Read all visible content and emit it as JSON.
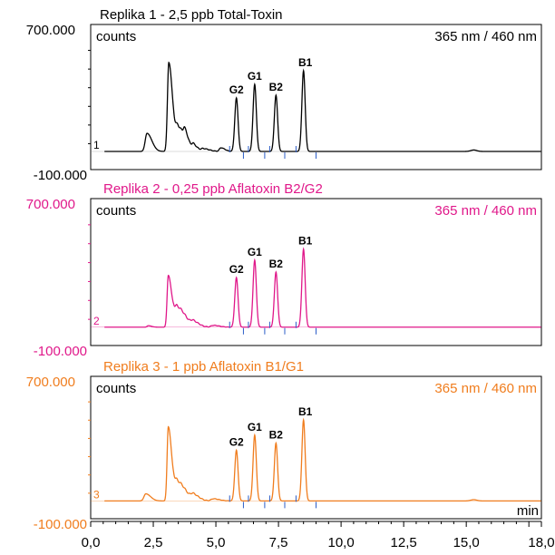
{
  "chart_data": {
    "type": "line",
    "x_unit": "min",
    "xlim": [
      0,
      18
    ],
    "ylim": [
      -100000,
      700000
    ],
    "x_ticks": [
      "0,0",
      "2,5",
      "5,0",
      "7,5",
      "10,0",
      "12,5",
      "15,0",
      "18,0"
    ],
    "x_tick_values": [
      0,
      2.5,
      5,
      7.5,
      10,
      12.5,
      15,
      18
    ],
    "panels": [
      {
        "title": "Replika 1 - 2,5 ppb Total-Toxin",
        "ymax_label": "700.000",
        "ymin_label": "-100.000",
        "y_unit": "counts",
        "wavelength": "365 nm / 460 nm",
        "trace_number": "1",
        "color": "#000000",
        "baseline": 0,
        "front_peaks": [
          [
            2.25,
            100000,
            0.12
          ],
          [
            3.12,
            490000,
            0.09
          ],
          [
            3.5,
            130000,
            0.18
          ],
          [
            3.75,
            45000,
            0.08
          ],
          [
            4.1,
            30000,
            0.1
          ],
          [
            4.5,
            15000,
            0.15
          ],
          [
            5.2,
            20000,
            0.1
          ]
        ],
        "peaks": [
          {
            "label": "G2",
            "x": 5.82,
            "y": 295000
          },
          {
            "label": "G1",
            "x": 6.55,
            "y": 370000
          },
          {
            "label": "B2",
            "x": 7.4,
            "y": 310000
          },
          {
            "label": "B1",
            "x": 8.5,
            "y": 445000
          }
        ],
        "small_peaks": [
          [
            15.3,
            8000,
            0.12
          ]
        ],
        "integration_marks": [
          5.55,
          6.1,
          6.3,
          6.95,
          7.15,
          7.75,
          8.2,
          9.0
        ]
      },
      {
        "title": "Replika 2 - 0,25 ppb Aflatoxin B2/G2",
        "ymax_label": "700.000",
        "ymin_label": "-100.000",
        "y_unit": "counts",
        "wavelength": "365 nm / 460 nm",
        "trace_number": "2",
        "color": "#e0188a",
        "baseline": 0,
        "front_peaks": [
          [
            2.3,
            8000,
            0.08
          ],
          [
            3.1,
            280000,
            0.08
          ],
          [
            3.45,
            110000,
            0.2
          ],
          [
            4.1,
            25000,
            0.15
          ],
          [
            4.9,
            10000,
            0.15
          ]
        ],
        "peaks": [
          {
            "label": "G2",
            "x": 5.82,
            "y": 270000
          },
          {
            "label": "G1",
            "x": 6.55,
            "y": 365000
          },
          {
            "label": "B2",
            "x": 7.4,
            "y": 300000
          },
          {
            "label": "B1",
            "x": 8.5,
            "y": 425000
          }
        ],
        "small_peaks": [],
        "integration_marks": [
          5.55,
          6.1,
          6.3,
          6.95,
          7.15,
          7.75,
          8.2,
          9.0
        ]
      },
      {
        "title": "Replika 3 - 1 ppb Aflatoxin B1/G1",
        "ymax_label": "700.000",
        "ymin_label": "-100.000",
        "y_unit": "counts",
        "wavelength": "365 nm / 460 nm",
        "trace_number": "3",
        "color": "#f07d1e",
        "baseline": 0,
        "front_peaks": [
          [
            2.2,
            40000,
            0.12
          ],
          [
            3.1,
            415000,
            0.08
          ],
          [
            3.45,
            110000,
            0.2
          ],
          [
            4.1,
            30000,
            0.15
          ],
          [
            4.9,
            12000,
            0.15
          ]
        ],
        "peaks": [
          {
            "label": "G2",
            "x": 5.82,
            "y": 285000
          },
          {
            "label": "G1",
            "x": 6.55,
            "y": 370000
          },
          {
            "label": "B2",
            "x": 7.4,
            "y": 325000
          },
          {
            "label": "B1",
            "x": 8.5,
            "y": 455000
          }
        ],
        "small_peaks": [
          [
            15.3,
            7000,
            0.12
          ]
        ],
        "integration_marks": [
          5.55,
          6.1,
          6.3,
          6.95,
          7.15,
          7.75,
          8.2,
          9.0
        ]
      }
    ]
  }
}
